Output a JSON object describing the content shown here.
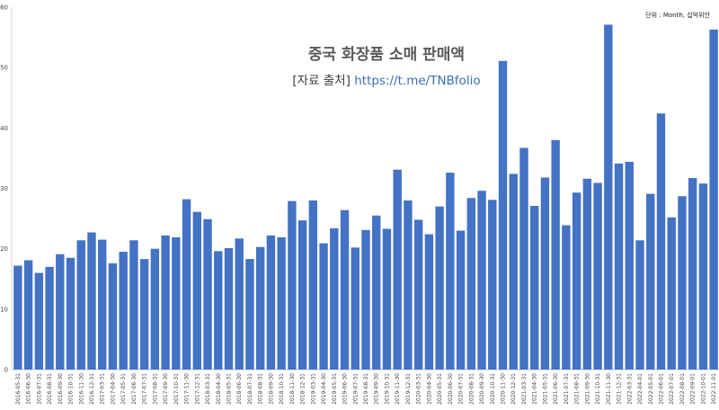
{
  "chart_data": {
    "type": "bar",
    "title": "중국 화장품 소매 판매액",
    "source_prefix": "[자료 출처]",
    "source_link": "https://t.me/TNBfolio",
    "unit_note": "단위 : Month, 십억위안",
    "ylim": [
      0,
      60
    ],
    "yticks": [
      0,
      10,
      20,
      30,
      40,
      50,
      60
    ],
    "bar_color": "#4472c4",
    "grid": false,
    "categories": [
      "2016-05-31",
      "2016-06-30",
      "2016-07-31",
      "2016-08-31",
      "2016-09-30",
      "2016-10-31",
      "2016-11-30",
      "2016-12-31",
      "2017-03-31",
      "2017-04-30",
      "2017-05-31",
      "2017-06-30",
      "2017-07-31",
      "2017-08-31",
      "2017-09-30",
      "2017-10-31",
      "2017-11-30",
      "2017-12-31",
      "2018-03-31",
      "2018-04-30",
      "2018-05-31",
      "2018-06-30",
      "2018-07-31",
      "2018-08-31",
      "2018-09-30",
      "2018-10-31",
      "2018-11-30",
      "2018-12-31",
      "2019-03-31",
      "2019-04-30",
      "2019-05-31",
      "2019-06-30",
      "2019-07-31",
      "2019-08-31",
      "2019-09-30",
      "2019-10-31",
      "2019-11-30",
      "2019-12-31",
      "2020-03-31",
      "2020-04-30",
      "2020-05-31",
      "2020-06-30",
      "2020-07-31",
      "2020-08-31",
      "2020-09-30",
      "2020-10-31",
      "2020-11-30",
      "2020-12-31",
      "2021-03-31",
      "2021-04-30",
      "2021-05-31",
      "2021-06-30",
      "2021-07-31",
      "2021-08-31",
      "2021-09-30",
      "2021-10-31",
      "2021-11-30",
      "2021-12-31",
      "2022-03-31",
      "2022-04-01",
      "2022-05-01",
      "2022-06-01",
      "2022-07-01",
      "2022-08-01",
      "2022-09-01",
      "2022-10-01",
      "2022-11-01"
    ],
    "values": [
      17.2,
      18.1,
      16.0,
      17.0,
      19.1,
      18.5,
      21.4,
      22.7,
      21.5,
      17.6,
      19.5,
      21.4,
      18.3,
      20.0,
      22.2,
      21.9,
      28.2,
      26.1,
      24.9,
      19.6,
      20.1,
      21.7,
      18.3,
      20.3,
      22.2,
      21.9,
      27.9,
      24.7,
      28.0,
      20.9,
      23.4,
      26.4,
      20.2,
      23.1,
      25.5,
      23.3,
      33.1,
      28.0,
      24.8,
      22.4,
      27.0,
      32.6,
      23.0,
      28.4,
      29.6,
      28.1,
      51.1,
      32.4,
      36.7,
      27.1,
      31.8,
      38.0,
      23.9,
      29.3,
      31.6,
      30.9,
      57.1,
      34.1,
      34.4,
      21.4,
      29.1,
      42.4,
      25.2,
      28.7,
      31.7,
      30.8,
      56.3
    ]
  }
}
